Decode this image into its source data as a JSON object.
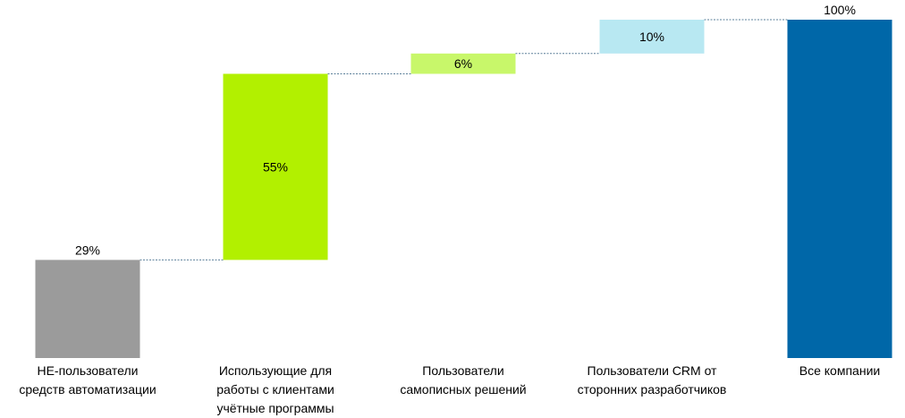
{
  "chart_data": {
    "type": "bar",
    "subtype": "waterfall",
    "categories": [
      [
        "НЕ-пользователи",
        "средств автоматизации"
      ],
      [
        "Использующие для",
        "работы с клиентами",
        "учётные программы"
      ],
      [
        "Пользователи",
        "самописных решений"
      ],
      [
        "Пользователи CRM от",
        "сторонних разработчиков"
      ],
      [
        "Все компании"
      ]
    ],
    "values": [
      29,
      55,
      6,
      10,
      100
    ],
    "labels": [
      "29%",
      "55%",
      "6%",
      "10%",
      "100%"
    ],
    "total_index": 4,
    "colors": [
      "#9b9b9b",
      "#b2f000",
      "#c8f76a",
      "#b8e8f2",
      "#0067a8"
    ],
    "connector_color": "#5a7f99",
    "ylim": [
      0,
      100
    ],
    "grid": false,
    "legend": "none",
    "title": "",
    "xlabel": "",
    "ylabel": ""
  }
}
